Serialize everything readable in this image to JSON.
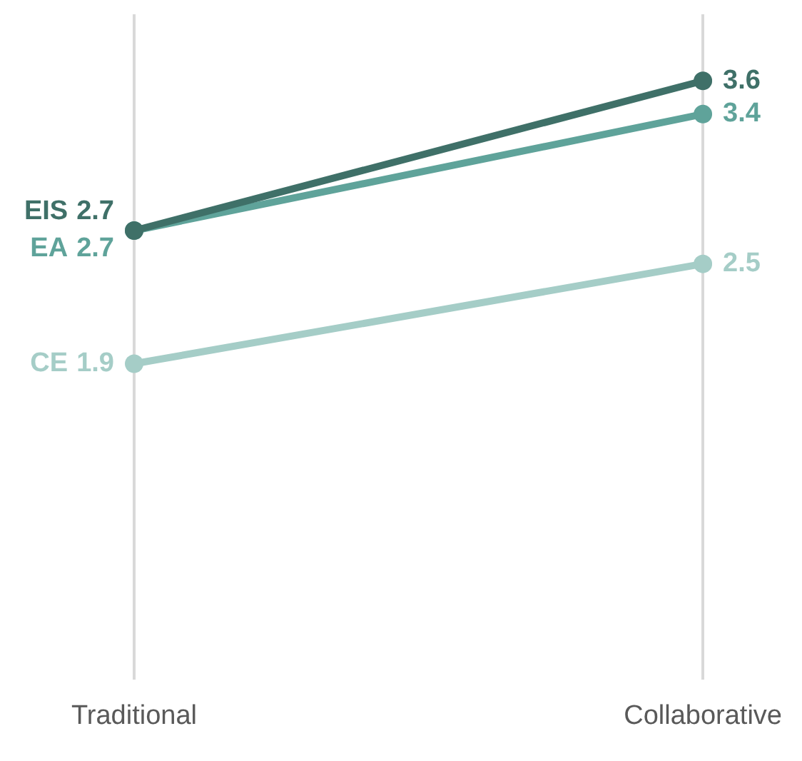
{
  "chart_data": {
    "type": "line",
    "categories": [
      "Traditional",
      "Collaborative"
    ],
    "series": [
      {
        "name": "EIS",
        "color": "#3f7068",
        "values": [
          2.7,
          3.6
        ]
      },
      {
        "name": "EA",
        "color": "#5fa39a",
        "values": [
          2.7,
          3.4
        ]
      },
      {
        "name": "CE",
        "color": "#a5cdc7",
        "values": [
          1.9,
          2.5
        ]
      }
    ],
    "ylim": [
      0,
      4
    ],
    "grid": "x",
    "tick_labels": "x",
    "legend": false,
    "marker": "circle",
    "line_style": "solid",
    "data_labels": true
  }
}
